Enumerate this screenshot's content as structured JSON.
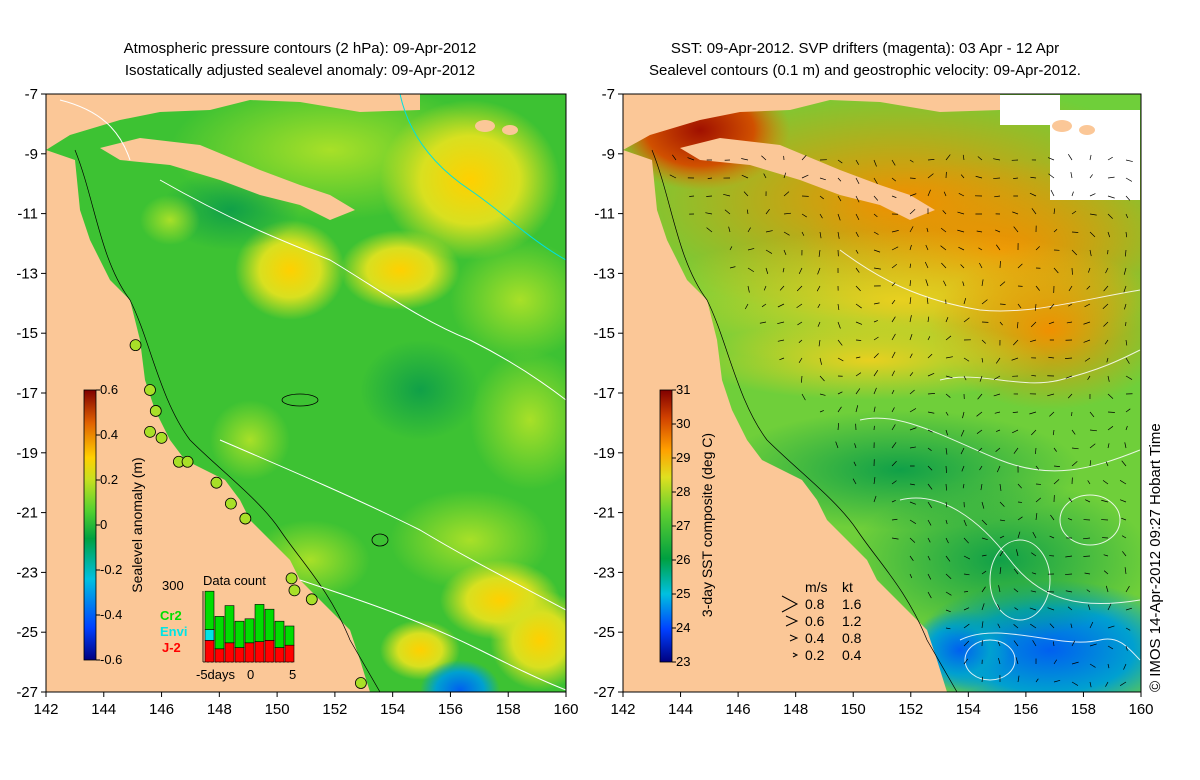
{
  "left_panel": {
    "title_line1": "Atmospheric pressure contours (2 hPa): 09-Apr-2012",
    "title_line2": "Isostatically adjusted sealevel anomaly: 09-Apr-2012",
    "colorbar": {
      "label": "Sealevel anomaly (m)",
      "ticks": [
        "0.6",
        "0.4",
        "0.2",
        "0",
        "-0.2",
        "-0.4",
        "-0.6"
      ],
      "range": [
        -0.6,
        0.6
      ]
    },
    "data_count": {
      "title": "Data count",
      "y_max_label": "300",
      "x_labels": [
        "-5days",
        "0",
        "5"
      ],
      "missions": [
        {
          "name": "Cr2",
          "color": "#00dd00"
        },
        {
          "name": "Envi",
          "color": "#00e5e5"
        },
        {
          "name": "J-2",
          "color": "#ff0000"
        }
      ],
      "bars": [
        {
          "j2": 90,
          "envi": 45,
          "cr2": 160
        },
        {
          "j2": 55,
          "envi": 0,
          "cr2": 135
        },
        {
          "j2": 80,
          "envi": 0,
          "cr2": 155
        },
        {
          "j2": 60,
          "envi": 0,
          "cr2": 110
        },
        {
          "j2": 80,
          "envi": 0,
          "cr2": 100
        },
        {
          "j2": 85,
          "envi": 0,
          "cr2": 155
        },
        {
          "j2": 90,
          "envi": 0,
          "cr2": 130
        },
        {
          "j2": 60,
          "envi": 0,
          "cr2": 110
        },
        {
          "j2": 70,
          "envi": 0,
          "cr2": 80
        }
      ]
    }
  },
  "right_panel": {
    "title_line1": "SST: 09-Apr-2012. SVP drifters (magenta): 03 Apr - 12 Apr",
    "title_line2": "Sealevel contours (0.1 m) and geostrophic velocity: 09-Apr-2012.",
    "colorbar": {
      "label": "3-day SST composite (deg C)",
      "ticks": [
        "31",
        "30",
        "29",
        "28",
        "27",
        "26",
        "25",
        "24",
        "23"
      ],
      "range": [
        23,
        31
      ]
    },
    "velocity_legend": {
      "header_ms": "m/s",
      "header_kt": "kt",
      "rows": [
        {
          "ms": "0.8",
          "kt": "1.6"
        },
        {
          "ms": "0.6",
          "kt": "1.2"
        },
        {
          "ms": "0.4",
          "kt": "0.8"
        },
        {
          "ms": "0.2",
          "kt": "0.4"
        }
      ]
    },
    "copyright": "© IMOS 14-Apr-2012 09:27 Hobart Time"
  },
  "axes": {
    "lon_ticks": [
      "142",
      "144",
      "146",
      "148",
      "150",
      "152",
      "154",
      "156",
      "158",
      "160"
    ],
    "lat_ticks": [
      "-7",
      "-9",
      "-11",
      "-13",
      "-15",
      "-17",
      "-19",
      "-21",
      "-23",
      "-25",
      "-27"
    ],
    "lon_range": [
      142,
      160
    ],
    "lat_range": [
      -27,
      -7
    ]
  },
  "colors": {
    "land": "#fbc797",
    "sla_background": "#3dc233",
    "sst_background": "#6fcf3a"
  }
}
